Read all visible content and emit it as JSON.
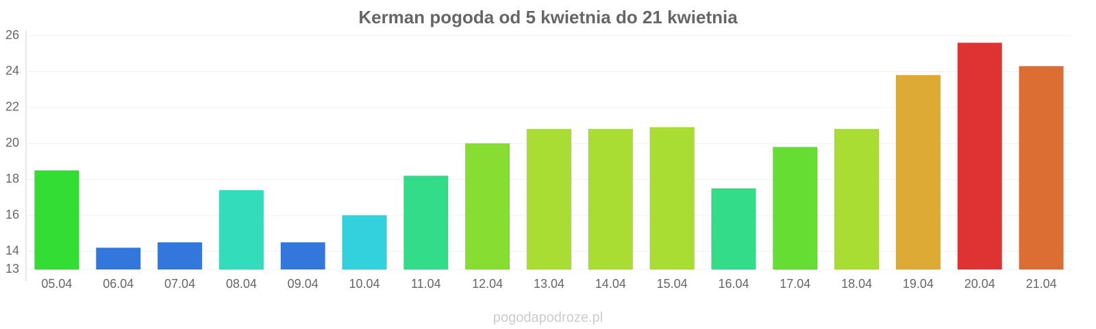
{
  "chart_data": {
    "type": "bar",
    "title": "Kerman pogoda od 5 kwietnia do 21 kwietnia",
    "categories": [
      "05.04",
      "06.04",
      "07.04",
      "08.04",
      "09.04",
      "10.04",
      "11.04",
      "12.04",
      "13.04",
      "14.04",
      "15.04",
      "16.04",
      "17.04",
      "18.04",
      "19.04",
      "20.04",
      "21.04"
    ],
    "values": [
      18.5,
      14.2,
      14.5,
      17.4,
      14.5,
      16.0,
      18.2,
      20.0,
      20.8,
      20.8,
      20.9,
      17.5,
      19.8,
      20.8,
      23.8,
      25.6,
      24.3
    ],
    "colors": [
      "#33dd33",
      "#3377dd",
      "#3377dd",
      "#33ddbb",
      "#3377dd",
      "#33d0dd",
      "#33dd88",
      "#88dd33",
      "#aadd33",
      "#aadd33",
      "#aadd33",
      "#33dd88",
      "#66dd33",
      "#aadd33",
      "#ddaa33",
      "#dd3333",
      "#dd6e33"
    ],
    "ylim": [
      13,
      26
    ],
    "yticks": [
      13,
      14,
      16,
      18,
      20,
      22,
      24,
      26
    ],
    "grid": true,
    "watermark": "pogodapodroze.pl"
  }
}
